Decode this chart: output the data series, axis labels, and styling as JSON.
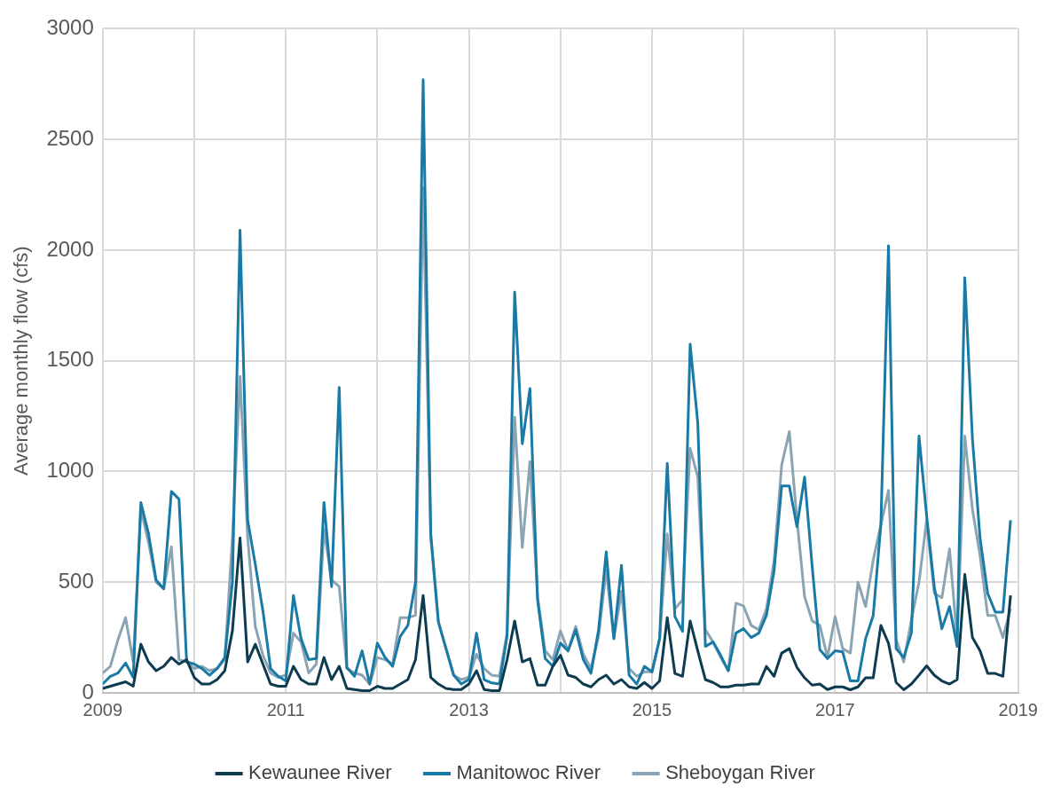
{
  "chart_data": {
    "type": "line",
    "ylabel": "Average monthly flow (cfs)",
    "x": [
      "2009-01",
      "2009-02",
      "2009-03",
      "2009-04",
      "2009-05",
      "2009-06",
      "2009-07",
      "2009-08",
      "2009-09",
      "2009-10",
      "2009-11",
      "2009-12",
      "2010-01",
      "2010-02",
      "2010-03",
      "2010-04",
      "2010-05",
      "2010-06",
      "2010-07",
      "2010-08",
      "2010-09",
      "2010-10",
      "2010-11",
      "2010-12",
      "2011-01",
      "2011-02",
      "2011-03",
      "2011-04",
      "2011-05",
      "2011-06",
      "2011-07",
      "2011-08",
      "2011-09",
      "2011-10",
      "2011-11",
      "2011-12",
      "2012-01",
      "2012-02",
      "2012-03",
      "2012-04",
      "2012-05",
      "2012-06",
      "2012-07",
      "2012-08",
      "2012-09",
      "2012-10",
      "2012-11",
      "2012-12",
      "2013-01",
      "2013-02",
      "2013-03",
      "2013-04",
      "2013-05",
      "2013-06",
      "2013-07",
      "2013-08",
      "2013-09",
      "2013-10",
      "2013-11",
      "2013-12",
      "2014-01",
      "2014-02",
      "2014-03",
      "2014-04",
      "2014-05",
      "2014-06",
      "2014-07",
      "2014-08",
      "2014-09",
      "2014-10",
      "2014-11",
      "2014-12",
      "2015-01",
      "2015-02",
      "2015-03",
      "2015-04",
      "2015-05",
      "2015-06",
      "2015-07",
      "2015-08",
      "2015-09",
      "2015-10",
      "2015-11",
      "2015-12",
      "2016-01",
      "2016-02",
      "2016-03",
      "2016-04",
      "2016-05",
      "2016-06",
      "2016-07",
      "2016-08",
      "2016-09",
      "2016-10",
      "2016-11",
      "2016-12",
      "2017-01",
      "2017-02",
      "2017-03",
      "2017-04",
      "2017-05",
      "2017-06",
      "2017-07",
      "2017-08",
      "2017-09",
      "2017-10",
      "2017-11",
      "2017-12",
      "2018-01",
      "2018-02",
      "2018-03",
      "2018-04",
      "2018-05",
      "2018-06",
      "2018-07",
      "2018-08",
      "2018-09",
      "2018-10",
      "2018-11",
      "2018-12"
    ],
    "series": [
      {
        "name": "Kewaunee River",
        "color": "#0d3b50",
        "values": [
          20,
          30,
          40,
          50,
          30,
          220,
          140,
          100,
          120,
          160,
          130,
          150,
          70,
          40,
          40,
          60,
          100,
          280,
          700,
          140,
          220,
          130,
          40,
          30,
          30,
          120,
          60,
          40,
          40,
          160,
          60,
          120,
          20,
          15,
          10,
          10,
          30,
          20,
          20,
          40,
          60,
          150,
          440,
          70,
          40,
          20,
          15,
          15,
          40,
          100,
          15,
          10,
          10,
          150,
          325,
          140,
          155,
          35,
          35,
          120,
          170,
          80,
          70,
          40,
          27,
          60,
          80,
          40,
          60,
          27,
          20,
          47,
          20,
          54,
          340,
          88,
          75,
          325,
          190,
          60,
          47,
          27,
          27,
          35,
          35,
          40,
          40,
          120,
          75,
          180,
          200,
          115,
          68,
          35,
          40,
          15,
          27,
          27,
          14,
          27,
          68,
          68,
          305,
          224,
          47,
          14,
          40,
          80,
          122,
          80,
          54,
          40,
          60,
          535,
          250,
          190,
          88,
          88,
          75,
          440
        ]
      },
      {
        "name": "Manitowoc River",
        "color": "#1a7aa6",
        "values": [
          40,
          75,
          90,
          135,
          70,
          860,
          720,
          510,
          470,
          910,
          875,
          140,
          130,
          110,
          80,
          110,
          160,
          500,
          2090,
          780,
          580,
          370,
          110,
          75,
          54,
          440,
          245,
          150,
          155,
          860,
          480,
          1380,
          115,
          75,
          190,
          40,
          225,
          160,
          120,
          255,
          305,
          500,
          2770,
          720,
          320,
          200,
          80,
          40,
          60,
          270,
          60,
          45,
          40,
          255,
          1810,
          1125,
          1375,
          420,
          155,
          120,
          225,
          190,
          285,
          150,
          88,
          285,
          637,
          245,
          576,
          80,
          40,
          120,
          95,
          245,
          1037,
          345,
          278,
          1575,
          1220,
          210,
          230,
          170,
          100,
          270,
          290,
          250,
          270,
          350,
          550,
          935,
          935,
          750,
          975,
          570,
          195,
          155,
          190,
          185,
          54,
          54,
          245,
          350,
          760,
          2020,
          200,
          160,
          270,
          1160,
          800,
          480,
          290,
          390,
          210,
          1875,
          1150,
          700,
          450,
          365,
          365,
          780
        ]
      },
      {
        "name": "Sheboygan River",
        "color": "#8ba4b3",
        "values": [
          90,
          120,
          240,
          340,
          140,
          830,
          680,
          500,
          470,
          660,
          150,
          140,
          110,
          120,
          100,
          110,
          150,
          700,
          1430,
          700,
          300,
          170,
          90,
          70,
          80,
          270,
          230,
          90,
          130,
          740,
          510,
          480,
          110,
          90,
          80,
          40,
          160,
          150,
          130,
          340,
          340,
          350,
          2280,
          700,
          320,
          200,
          80,
          60,
          70,
          175,
          110,
          80,
          75,
          270,
          1245,
          657,
          1045,
          435,
          190,
          150,
          280,
          190,
          300,
          175,
          110,
          257,
          555,
          245,
          460,
          110,
          75,
          95,
          95,
          245,
          718,
          380,
          420,
          1105,
          975,
          285,
          230,
          160,
          100,
          405,
          393,
          305,
          285,
          380,
          596,
          1030,
          1180,
          785,
          435,
          325,
          305,
          160,
          345,
          200,
          180,
          500,
          390,
          600,
          760,
          915,
          240,
          140,
          330,
          500,
          780,
          450,
          430,
          650,
          240,
          1160,
          830,
          620,
          350,
          350,
          250,
          380
        ]
      }
    ],
    "xlim": [
      "2009",
      "2019"
    ],
    "xticks": [
      {
        "value": "2009",
        "label": "2009"
      },
      {
        "value": "2010",
        "label": null
      },
      {
        "value": "2011",
        "label": "2011"
      },
      {
        "value": "2012",
        "label": null
      },
      {
        "value": "2013",
        "label": "2013"
      },
      {
        "value": "2014",
        "label": null
      },
      {
        "value": "2015",
        "label": "2015"
      },
      {
        "value": "2016",
        "label": null
      },
      {
        "value": "2017",
        "label": "2017"
      },
      {
        "value": "2018",
        "label": null
      },
      {
        "value": "2019",
        "label": "2019"
      }
    ],
    "ylim": [
      0,
      3000
    ],
    "yticks": [
      0,
      500,
      1000,
      1500,
      2000,
      2500,
      3000
    ],
    "grid": true,
    "legend": "bottom",
    "marker": "none",
    "line_style": "solid"
  }
}
